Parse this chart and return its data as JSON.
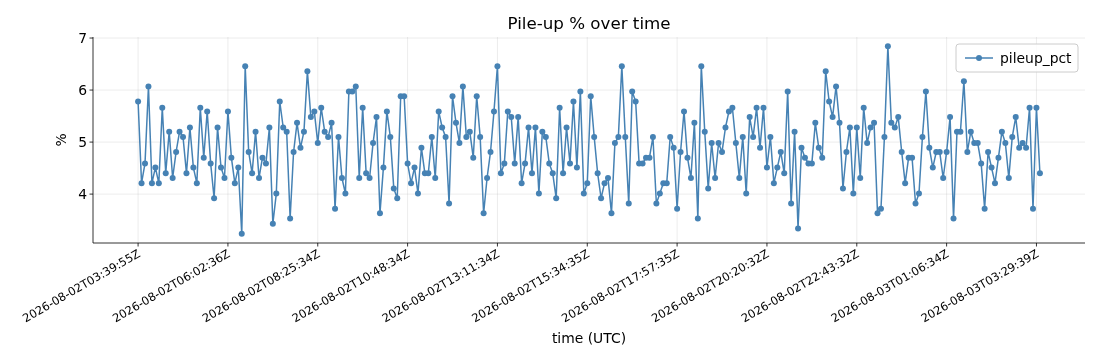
{
  "chart_data": {
    "type": "line",
    "title": "Pile-up % over time",
    "xlabel": "time (UTC)",
    "ylabel": "%",
    "categories": [
      "2026-08-02T03:39:55Z",
      null,
      null,
      null,
      null,
      null,
      null,
      null,
      null,
      null,
      null,
      null,
      null,
      null,
      null,
      null,
      null,
      null,
      null,
      null,
      null,
      null,
      null,
      null,
      null,
      null,
      "2026-08-02T06:02:36Z",
      null,
      null,
      null,
      null,
      null,
      null,
      null,
      null,
      null,
      null,
      null,
      null,
      null,
      null,
      null,
      null,
      null,
      null,
      null,
      null,
      null,
      null,
      null,
      null,
      null,
      "2026-08-02T08:25:34Z",
      null,
      null,
      null,
      null,
      null,
      null,
      null,
      null,
      null,
      null,
      null,
      null,
      null,
      null,
      null,
      null,
      null,
      null,
      null,
      null,
      null,
      null,
      null,
      null,
      null,
      "2026-08-02T10:48:34Z",
      null,
      null,
      null,
      null,
      null,
      null,
      null,
      null,
      null,
      null,
      null,
      null,
      null,
      null,
      null,
      null,
      null,
      null,
      null,
      null,
      null,
      null,
      null,
      null,
      null,
      "2026-08-02T13:11:34Z",
      null,
      null,
      null,
      null,
      null,
      null,
      null,
      null,
      null,
      null,
      null,
      null,
      null,
      null,
      null,
      null,
      null,
      null,
      null,
      null,
      null,
      null,
      null,
      null,
      null,
      "2026-08-02T15:34:35Z",
      null,
      null,
      null,
      null,
      null,
      null,
      null,
      null,
      null,
      null,
      null,
      null,
      null,
      null,
      null,
      null,
      null,
      null,
      null,
      null,
      null,
      null,
      null,
      null,
      null,
      "2026-08-02T17:57:35Z",
      null,
      null,
      null,
      null,
      null,
      null,
      null,
      null,
      null,
      null,
      null,
      null,
      null,
      null,
      null,
      null,
      null,
      null,
      null,
      null,
      null,
      null,
      null,
      null,
      null,
      "2026-08-02T20:20:32Z",
      null,
      null,
      null,
      null,
      null,
      null,
      null,
      null,
      null,
      null,
      null,
      null,
      null,
      null,
      null,
      null,
      null,
      null,
      null,
      null,
      null,
      null,
      null,
      null,
      null,
      "2026-08-02T22:43:32Z",
      null,
      null,
      null,
      null,
      null,
      null,
      null,
      null,
      null,
      null,
      null,
      null,
      null,
      null,
      null,
      null,
      null,
      null,
      null,
      null,
      null,
      null,
      null,
      null,
      null,
      "2026-08-03T01:06:34Z",
      null,
      null,
      null,
      null,
      null,
      null,
      null,
      null,
      null,
      null,
      null,
      null,
      null,
      null,
      null,
      null,
      null,
      null,
      null,
      null,
      null,
      null,
      null,
      null,
      null,
      "2026-08-03T03:29:39Z",
      null
    ],
    "series": [
      {
        "name": "pileup_pct",
        "color": "#4682b4",
        "values": [
          5.78,
          4.21,
          4.59,
          6.07,
          4.21,
          4.51,
          4.21,
          5.66,
          4.4,
          5.2,
          4.31,
          4.81,
          5.2,
          5.1,
          4.4,
          5.28,
          4.51,
          4.21,
          5.66,
          4.7,
          5.59,
          4.59,
          3.92,
          5.28,
          4.51,
          4.31,
          5.59,
          4.7,
          4.21,
          4.51,
          3.24,
          6.46,
          4.81,
          4.4,
          5.2,
          4.31,
          4.7,
          4.59,
          5.28,
          3.43,
          4.01,
          5.78,
          5.28,
          5.2,
          3.53,
          4.81,
          5.37,
          4.89,
          5.2,
          6.36,
          5.48,
          5.59,
          4.98,
          5.66,
          5.2,
          5.1,
          5.37,
          3.72,
          5.1,
          4.31,
          4.01,
          5.97,
          5.97,
          6.07,
          4.31,
          5.66,
          4.4,
          4.31,
          4.98,
          5.48,
          3.63,
          4.51,
          5.59,
          5.1,
          4.11,
          3.92,
          5.88,
          5.88,
          4.59,
          4.21,
          4.51,
          4.01,
          4.89,
          4.4,
          4.4,
          5.1,
          4.31,
          5.59,
          5.28,
          5.1,
          3.82,
          5.88,
          5.37,
          4.98,
          6.07,
          5.1,
          5.2,
          4.7,
          5.88,
          5.1,
          3.63,
          4.31,
          4.81,
          5.59,
          6.46,
          4.4,
          4.59,
          5.59,
          5.48,
          4.59,
          5.48,
          4.21,
          4.59,
          5.28,
          4.4,
          5.28,
          4.01,
          5.2,
          5.1,
          4.59,
          4.4,
          3.92,
          5.66,
          4.4,
          5.28,
          4.59,
          5.78,
          4.51,
          5.97,
          4.01,
          4.21,
          5.88,
          5.1,
          4.4,
          3.92,
          4.21,
          4.31,
          3.63,
          4.98,
          5.1,
          6.46,
          5.1,
          3.82,
          5.97,
          5.78,
          4.59,
          4.59,
          4.7,
          4.7,
          5.1,
          3.82,
          4.01,
          4.21,
          4.21,
          5.1,
          4.89,
          3.72,
          4.81,
          5.59,
          4.7,
          4.31,
          5.37,
          3.53,
          6.46,
          5.2,
          4.11,
          4.98,
          4.31,
          4.98,
          4.81,
          5.28,
          5.59,
          5.66,
          4.98,
          4.31,
          5.1,
          4.01,
          5.48,
          5.1,
          5.66,
          4.89,
          5.66,
          4.51,
          5.1,
          4.21,
          4.51,
          4.81,
          4.4,
          5.97,
          3.82,
          5.2,
          3.34,
          4.89,
          4.7,
          4.59,
          4.59,
          5.37,
          4.89,
          4.7,
          6.36,
          5.78,
          5.48,
          6.07,
          5.37,
          4.11,
          4.81,
          5.28,
          4.01,
          5.28,
          4.31,
          5.66,
          4.98,
          5.28,
          5.37,
          3.63,
          3.72,
          5.1,
          6.84,
          5.37,
          5.28,
          5.48,
          4.81,
          4.21,
          4.7,
          4.7,
          3.82,
          4.01,
          5.1,
          5.97,
          4.89,
          4.51,
          4.81,
          4.81,
          4.31,
          4.81,
          5.48,
          3.53,
          5.2,
          5.2,
          6.17,
          4.81,
          5.2,
          4.98,
          4.98,
          4.59,
          3.72,
          4.81,
          4.51,
          4.21,
          4.7,
          5.2,
          4.98,
          4.31,
          5.1,
          5.48,
          4.89,
          4.98,
          4.89,
          5.66,
          3.72,
          5.66,
          4.4
        ]
      }
    ],
    "ylim": [
      3.06,
      7.02
    ],
    "yticks": [
      4,
      5,
      6,
      7
    ],
    "grid": true,
    "legend": "top right",
    "marker": "circle",
    "line_style": "solid"
  }
}
